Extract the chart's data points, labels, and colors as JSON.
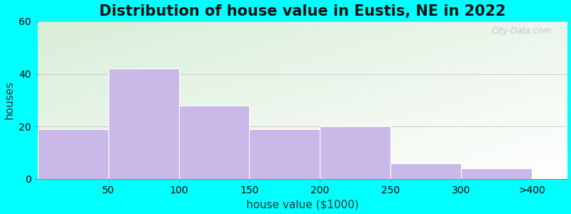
{
  "title": "Distribution of house value in Eustis, NE in 2022",
  "xlabel": "house value ($1000)",
  "ylabel": "houses",
  "bar_labels": [
    "50",
    "100",
    "150",
    "200",
    "250",
    "300",
    ">400"
  ],
  "bar_heights": [
    19,
    42,
    28,
    19,
    20,
    6,
    4
  ],
  "bar_color": "#C9B8E8",
  "bar_edgecolor": "#FFFFFF",
  "ylim": [
    0,
    60
  ],
  "yticks": [
    0,
    20,
    40,
    60
  ],
  "background_color": "#00FFFF",
  "plot_bg_topleft": "#D8EED8",
  "plot_bg_bottomright": "#FFFFFF",
  "title_fontsize": 15,
  "axis_label_fontsize": 11,
  "tick_fontsize": 10,
  "watermark_text": "City-Data.com"
}
